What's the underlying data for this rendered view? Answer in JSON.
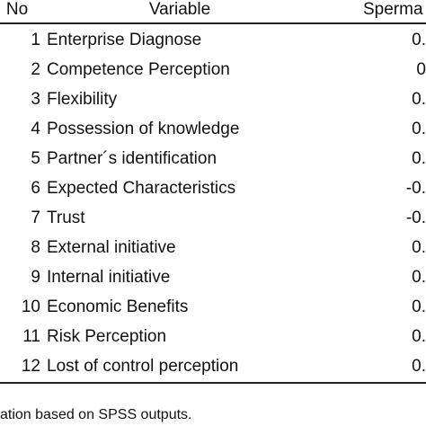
{
  "table": {
    "headers": [
      "No",
      "Variable",
      "Sperma"
    ],
    "rows": [
      [
        "1",
        "Enterprise Diagnose",
        "0."
      ],
      [
        "2",
        "Competence Perception",
        "0"
      ],
      [
        "3",
        "Flexibility",
        "0."
      ],
      [
        "4",
        "Possession of knowledge",
        "0."
      ],
      [
        "5",
        "Partner´s identification",
        "0."
      ],
      [
        "6",
        "Expected Characteristics",
        "-0."
      ],
      [
        "7",
        "Trust",
        "-0."
      ],
      [
        "8",
        "External initiative",
        "0."
      ],
      [
        "9",
        "Internal initiative",
        "0."
      ],
      [
        "10",
        "Economic Benefits",
        "0."
      ],
      [
        "11",
        "Risk Perception",
        "0."
      ],
      [
        "12",
        "Lost of control perception",
        "0."
      ]
    ]
  },
  "footer": "ation based on SPSS outputs."
}
